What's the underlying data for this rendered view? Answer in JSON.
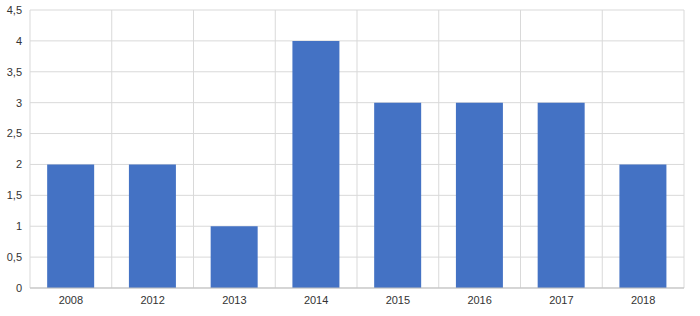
{
  "chart_data": {
    "type": "bar",
    "categories": [
      "2008",
      "2012",
      "2013",
      "2014",
      "2015",
      "2016",
      "2017",
      "2018"
    ],
    "values": [
      2,
      2,
      1,
      4,
      3,
      3,
      3,
      2
    ],
    "color": "#4472c4",
    "ylim": [
      0,
      4.5
    ],
    "yticks": [
      0,
      {
        "value": 0.5,
        "label": "0,5"
      },
      1,
      {
        "value": 1.5,
        "label": "1,5"
      },
      2,
      {
        "value": 2.5,
        "label": "2,5"
      },
      3,
      {
        "value": 3.5,
        "label": "3,5"
      },
      4,
      {
        "value": 4.5,
        "label": "4,5"
      }
    ],
    "grid": true
  }
}
